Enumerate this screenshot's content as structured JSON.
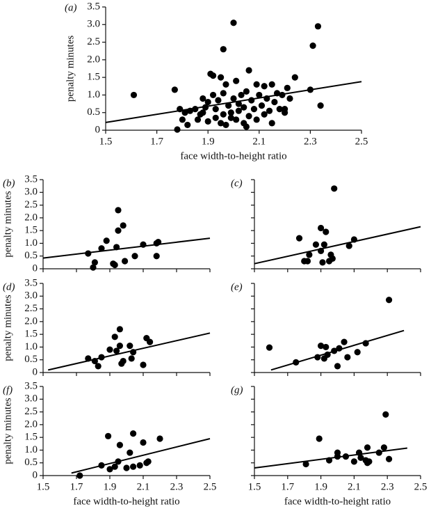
{
  "chart_data": [
    {
      "type": "scatter",
      "label": "(a)",
      "ylabel": "penalty minutes",
      "xlabel": "face width-to-height ratio",
      "show_xtick_labels": true,
      "show_ytick_labels": true,
      "xlim": [
        1.5,
        2.5
      ],
      "ylim": [
        0,
        3.5
      ],
      "xticks": [
        1.5,
        1.7,
        1.9,
        2.1,
        2.3,
        2.5
      ],
      "yticks": [
        0,
        0.5,
        {
          "value": 1,
          "label": "1.0"
        },
        1.5,
        {
          "value": 2,
          "label": "2.0"
        },
        2.5,
        {
          "value": 3,
          "label": "3.0"
        },
        3.5
      ],
      "x": [
        1.61,
        1.77,
        1.78,
        1.79,
        1.8,
        1.81,
        1.82,
        1.83,
        1.85,
        1.86,
        1.87,
        1.88,
        1.88,
        1.89,
        1.9,
        1.9,
        1.91,
        1.92,
        1.92,
        1.93,
        1.93,
        1.94,
        1.95,
        1.95,
        1.96,
        1.96,
        1.96,
        1.97,
        1.97,
        1.98,
        1.99,
        2.0,
        2.0,
        2.01,
        2.01,
        2.02,
        2.02,
        2.03,
        2.04,
        2.04,
        2.05,
        2.06,
        2.06,
        2.07,
        2.08,
        2.09,
        2.09,
        2.1,
        2.11,
        2.12,
        2.12,
        2.13,
        2.14,
        2.15,
        2.15,
        2.16,
        2.17,
        2.18,
        2.19,
        2.2,
        2.21,
        2.22,
        2.24,
        2.3,
        2.31,
        2.33,
        2.34,
        2.2,
        2.05,
        1.99
      ],
      "y": [
        1.0,
        1.15,
        0.02,
        0.6,
        0.3,
        0.5,
        0.15,
        0.55,
        0.6,
        0.3,
        0.45,
        0.9,
        0.5,
        0.65,
        0.25,
        0.8,
        1.6,
        1.55,
        1.0,
        0.35,
        0.6,
        0.85,
        1.5,
        0.2,
        2.3,
        1.05,
        0.45,
        0.15,
        1.3,
        0.7,
        0.5,
        3.05,
        0.9,
        1.4,
        0.3,
        0.75,
        0.55,
        1.0,
        0.2,
        0.65,
        1.1,
        1.7,
        0.4,
        0.85,
        0.6,
        1.3,
        0.3,
        1.0,
        0.7,
        1.25,
        0.45,
        0.9,
        0.55,
        1.3,
        0.2,
        0.8,
        1.05,
        0.6,
        1.0,
        0.5,
        1.2,
        0.9,
        1.5,
        1.15,
        2.4,
        2.95,
        0.7,
        0.6,
        0.1,
        0.35
      ],
      "trend": {
        "x": [
          1.5,
          2.5
        ],
        "y": [
          0.22,
          1.38
        ]
      }
    },
    {
      "type": "scatter",
      "label": "(b)",
      "ylabel": "penalty minutes",
      "show_xtick_labels": false,
      "show_ytick_labels": true,
      "xlim": [
        1.5,
        2.5
      ],
      "ylim": [
        0,
        3.5
      ],
      "xticks": [
        1.5,
        1.7,
        1.9,
        2.1,
        2.3,
        2.5
      ],
      "yticks": [
        0,
        0.5,
        {
          "value": 1,
          "label": "1.0"
        },
        1.5,
        {
          "value": 2,
          "label": "2.0"
        },
        2.5,
        {
          "value": 3,
          "label": "3.0"
        },
        3.5
      ],
      "x": [
        1.77,
        1.8,
        1.81,
        1.85,
        1.88,
        1.92,
        1.93,
        1.94,
        1.95,
        1.95,
        1.98,
        1.99,
        2.05,
        2.1,
        2.18,
        2.18,
        2.19
      ],
      "y": [
        0.6,
        0.05,
        0.25,
        0.8,
        1.1,
        0.2,
        0.15,
        0.85,
        1.5,
        2.3,
        1.7,
        0.3,
        0.5,
        0.95,
        1.0,
        0.5,
        1.05
      ],
      "trend": {
        "x": [
          1.5,
          2.5
        ],
        "y": [
          0.42,
          1.2
        ]
      }
    },
    {
      "type": "scatter",
      "label": "(c)",
      "show_xtick_labels": false,
      "show_ytick_labels": false,
      "xlim": [
        1.5,
        2.5
      ],
      "ylim": [
        0,
        3.5
      ],
      "xticks": [
        1.5,
        1.7,
        1.9,
        2.1,
        2.3,
        2.5
      ],
      "yticks": [
        0,
        0.5,
        1,
        1.5,
        2,
        2.5,
        3,
        3.5
      ],
      "x": [
        1.77,
        1.8,
        1.82,
        1.83,
        1.87,
        1.9,
        1.9,
        1.91,
        1.92,
        1.93,
        1.95,
        1.96,
        1.98,
        1.97,
        2.07,
        2.1
      ],
      "y": [
        1.2,
        0.3,
        0.3,
        0.55,
        0.95,
        0.7,
        1.6,
        0.25,
        0.95,
        1.45,
        0.3,
        0.55,
        3.15,
        0.4,
        0.9,
        1.15
      ],
      "trend": {
        "x": [
          1.5,
          2.5
        ],
        "y": [
          0.2,
          1.65
        ]
      }
    },
    {
      "type": "scatter",
      "label": "(d)",
      "ylabel": "penalty minutes",
      "show_xtick_labels": false,
      "show_ytick_labels": true,
      "xlim": [
        1.5,
        2.5
      ],
      "ylim": [
        0,
        3.5
      ],
      "xticks": [
        1.5,
        1.7,
        1.9,
        2.1,
        2.3,
        2.5
      ],
      "yticks": [
        0,
        0.5,
        {
          "value": 1,
          "label": "1.0"
        },
        1.5,
        {
          "value": 2,
          "label": "2.0"
        },
        2.5,
        {
          "value": 3,
          "label": "3.0"
        },
        3.5
      ],
      "x": [
        1.77,
        1.81,
        1.83,
        1.85,
        1.9,
        1.93,
        1.94,
        1.96,
        1.96,
        1.97,
        1.98,
        2.02,
        2.03,
        2.04,
        2.1,
        2.12,
        2.14
      ],
      "y": [
        0.55,
        0.45,
        0.25,
        0.6,
        0.9,
        1.4,
        0.85,
        1.7,
        1.05,
        0.35,
        0.45,
        1.05,
        0.55,
        0.8,
        0.3,
        1.35,
        1.2
      ],
      "trend": {
        "x": [
          1.53,
          2.5
        ],
        "y": [
          0.1,
          1.55
        ]
      }
    },
    {
      "type": "scatter",
      "label": "(e)",
      "show_xtick_labels": false,
      "show_ytick_labels": false,
      "xlim": [
        1.5,
        2.5
      ],
      "ylim": [
        0,
        3.5
      ],
      "xticks": [
        1.5,
        1.7,
        1.9,
        2.1,
        2.3,
        2.5
      ],
      "yticks": [
        0,
        0.5,
        1,
        1.5,
        2,
        2.5,
        3,
        3.5
      ],
      "x": [
        1.59,
        1.75,
        1.88,
        1.9,
        1.92,
        1.93,
        1.94,
        1.98,
        2.0,
        2.01,
        2.04,
        2.06,
        2.12,
        2.17,
        2.31
      ],
      "y": [
        0.98,
        0.4,
        0.6,
        1.05,
        0.55,
        1.0,
        0.7,
        0.85,
        0.25,
        0.95,
        1.2,
        0.6,
        0.8,
        1.15,
        2.85
      ],
      "trend": {
        "x": [
          1.6,
          2.4
        ],
        "y": [
          0.1,
          1.65
        ]
      }
    },
    {
      "type": "scatter",
      "label": "(f)",
      "ylabel": "penalty minutes",
      "xlabel": "face width-to-height ratio",
      "show_xtick_labels": true,
      "show_ytick_labels": true,
      "xlim": [
        1.5,
        2.5
      ],
      "ylim": [
        0,
        3.5
      ],
      "xticks": [
        1.5,
        1.7,
        1.9,
        2.1,
        2.3,
        2.5
      ],
      "yticks": [
        0,
        0.5,
        {
          "value": 1,
          "label": "1.0"
        },
        1.5,
        {
          "value": 2,
          "label": "2.0"
        },
        2.5,
        {
          "value": 3,
          "label": "3.0"
        },
        3.5
      ],
      "x": [
        1.72,
        1.85,
        1.89,
        1.9,
        1.93,
        1.95,
        1.96,
        2.0,
        2.02,
        2.04,
        2.04,
        2.08,
        2.1,
        2.13,
        2.2,
        2.12
      ],
      "y": [
        0.0,
        0.4,
        1.55,
        0.25,
        0.35,
        0.55,
        1.2,
        0.3,
        0.9,
        1.65,
        0.35,
        0.4,
        1.3,
        0.55,
        1.45,
        0.5
      ],
      "trend": {
        "x": [
          1.67,
          2.5
        ],
        "y": [
          0.1,
          1.45
        ]
      }
    },
    {
      "type": "scatter",
      "label": "(g)",
      "xlabel": "face width-to-height ratio",
      "show_xtick_labels": true,
      "show_ytick_labels": false,
      "xlim": [
        1.5,
        2.5
      ],
      "ylim": [
        0,
        3.5
      ],
      "xticks": [
        1.5,
        1.7,
        1.9,
        2.1,
        2.3,
        2.5
      ],
      "yticks": [
        0,
        0.5,
        1,
        1.5,
        2,
        2.5,
        3,
        3.5
      ],
      "x": [
        1.81,
        1.89,
        1.95,
        2.0,
        2.0,
        2.05,
        2.1,
        2.13,
        2.14,
        2.17,
        2.18,
        2.18,
        2.25,
        2.28,
        2.29,
        2.31,
        2.19
      ],
      "y": [
        0.45,
        1.45,
        0.6,
        0.75,
        0.9,
        0.75,
        0.55,
        0.9,
        0.7,
        0.6,
        0.5,
        1.1,
        0.9,
        1.1,
        2.4,
        0.65,
        0.55
      ],
      "trend": {
        "x": [
          1.5,
          2.42
        ],
        "y": [
          0.3,
          1.08
        ]
      }
    }
  ]
}
